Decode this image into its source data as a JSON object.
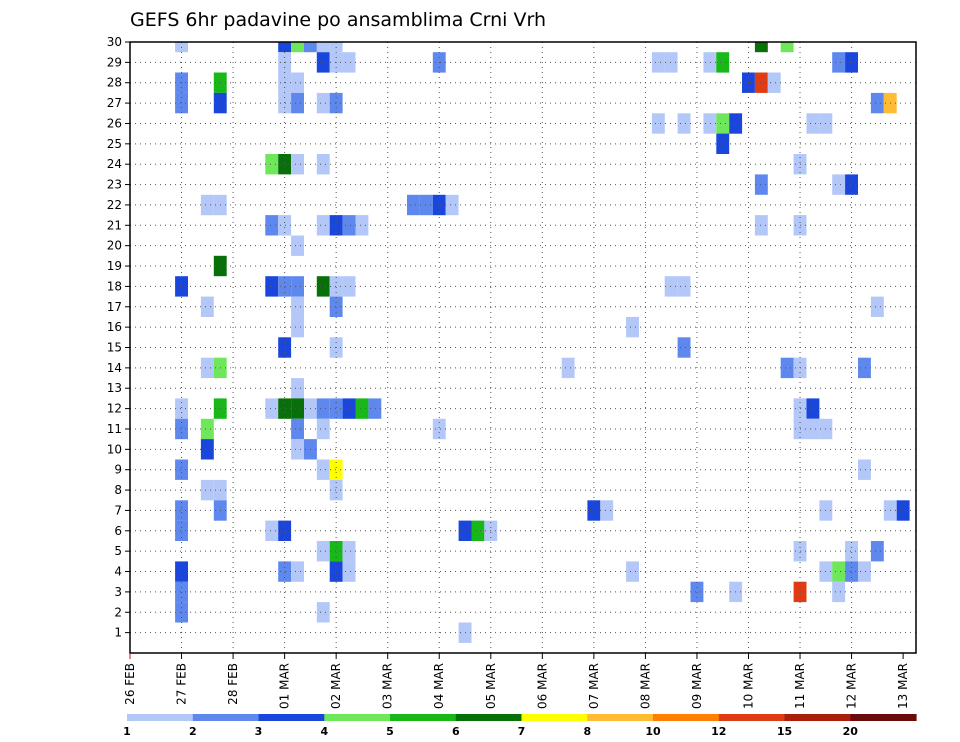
{
  "chart_data": {
    "type": "heatmap",
    "title": "GEFS 6hr padavine po ansamblima Crni Vrh",
    "xlabel": "",
    "ylabel": "",
    "x_ticks": [
      "26 FEB",
      "27 FEB",
      "28 FEB",
      "01 MAR",
      "02 MAR",
      "03 MAR",
      "04 MAR",
      "05 MAR",
      "06 MAR",
      "07 MAR",
      "08 MAR",
      "09 MAR",
      "10 MAR",
      "11 MAR",
      "12 MAR",
      "13 MAR"
    ],
    "y_ticks": [
      "1",
      "2",
      "3",
      "4",
      "5",
      "6",
      "7",
      "8",
      "9",
      "10",
      "11",
      "12",
      "13",
      "14",
      "15",
      "16",
      "17",
      "18",
      "19",
      "20",
      "21",
      "22",
      "23",
      "24",
      "25",
      "26",
      "27",
      "28",
      "29",
      "30"
    ],
    "x_unit": "6-hour step index (0 = 26 FEB 00z, 4 steps per day)",
    "xlim": [
      0,
      61
    ],
    "ylim": [
      0,
      30
    ],
    "grid": true,
    "legend": {
      "placement": "bottom",
      "colors": [
        "#b3c8f8",
        "#5e88ee",
        "#1a46dc",
        "#6ee85a",
        "#18b818",
        "#087008",
        "#ffff00",
        "#ffbb33",
        "#ff7f00",
        "#e03c14",
        "#aa1e0c",
        "#6a0a0a"
      ],
      "labels": [
        "1",
        "2",
        "3",
        "4",
        "5",
        "6",
        "7",
        "8",
        "10",
        "12",
        "15",
        "20"
      ]
    },
    "cells": [
      [
        4,
        30,
        1
      ],
      [
        12,
        30,
        3
      ],
      [
        13,
        30,
        4
      ],
      [
        14,
        30,
        2
      ],
      [
        15,
        30,
        1
      ],
      [
        16,
        30,
        1
      ],
      [
        49,
        30,
        6
      ],
      [
        51,
        30,
        4
      ],
      [
        12,
        29,
        1
      ],
      [
        15,
        29,
        3
      ],
      [
        16,
        29,
        1
      ],
      [
        17,
        29,
        1
      ],
      [
        24,
        29,
        2
      ],
      [
        41,
        29,
        1
      ],
      [
        42,
        29,
        1
      ],
      [
        45,
        29,
        1
      ],
      [
        46,
        29,
        5
      ],
      [
        55,
        29,
        2
      ],
      [
        56,
        29,
        3
      ],
      [
        4,
        28,
        2
      ],
      [
        7,
        28,
        5
      ],
      [
        12,
        28,
        1
      ],
      [
        13,
        28,
        1
      ],
      [
        48,
        28,
        3
      ],
      [
        49,
        28,
        10
      ],
      [
        50,
        28,
        1
      ],
      [
        4,
        27,
        2
      ],
      [
        7,
        27,
        3
      ],
      [
        12,
        27,
        1
      ],
      [
        13,
        27,
        2
      ],
      [
        15,
        27,
        1
      ],
      [
        16,
        27,
        2
      ],
      [
        58,
        27,
        2
      ],
      [
        59,
        27,
        8
      ],
      [
        41,
        26,
        1
      ],
      [
        43,
        26,
        1
      ],
      [
        45,
        26,
        1
      ],
      [
        46,
        26,
        4
      ],
      [
        47,
        26,
        3
      ],
      [
        53,
        26,
        1
      ],
      [
        54,
        26,
        1
      ],
      [
        46,
        25,
        3
      ],
      [
        11,
        24,
        4
      ],
      [
        12,
        24,
        6
      ],
      [
        13,
        24,
        1
      ],
      [
        15,
        24,
        1
      ],
      [
        52,
        24,
        1
      ],
      [
        49,
        23,
        2
      ],
      [
        55,
        23,
        1
      ],
      [
        56,
        23,
        3
      ],
      [
        6,
        22,
        1
      ],
      [
        7,
        22,
        1
      ],
      [
        22,
        22,
        2
      ],
      [
        23,
        22,
        2
      ],
      [
        24,
        22,
        3
      ],
      [
        25,
        22,
        1
      ],
      [
        11,
        21,
        2
      ],
      [
        12,
        21,
        1
      ],
      [
        15,
        21,
        1
      ],
      [
        16,
        21,
        3
      ],
      [
        17,
        21,
        2
      ],
      [
        18,
        21,
        1
      ],
      [
        49,
        21,
        1
      ],
      [
        52,
        21,
        1
      ],
      [
        13,
        20,
        1
      ],
      [
        7,
        19,
        6
      ],
      [
        4,
        18,
        3
      ],
      [
        11,
        18,
        3
      ],
      [
        12,
        18,
        2
      ],
      [
        13,
        18,
        2
      ],
      [
        15,
        18,
        6
      ],
      [
        16,
        18,
        1
      ],
      [
        17,
        18,
        1
      ],
      [
        42,
        18,
        1
      ],
      [
        43,
        18,
        1
      ],
      [
        6,
        17,
        1
      ],
      [
        13,
        17,
        1
      ],
      [
        16,
        17,
        2
      ],
      [
        58,
        17,
        1
      ],
      [
        13,
        16,
        1
      ],
      [
        39,
        16,
        1
      ],
      [
        12,
        15,
        3
      ],
      [
        16,
        15,
        1
      ],
      [
        43,
        15,
        2
      ],
      [
        6,
        14,
        1
      ],
      [
        7,
        14,
        4
      ],
      [
        34,
        14,
        1
      ],
      [
        51,
        14,
        2
      ],
      [
        52,
        14,
        1
      ],
      [
        57,
        14,
        2
      ],
      [
        13,
        13,
        1
      ],
      [
        4,
        12,
        1
      ],
      [
        7,
        12,
        5
      ],
      [
        11,
        12,
        1
      ],
      [
        12,
        12,
        6
      ],
      [
        13,
        12,
        6
      ],
      [
        14,
        12,
        1
      ],
      [
        15,
        12,
        2
      ],
      [
        16,
        12,
        2
      ],
      [
        17,
        12,
        3
      ],
      [
        18,
        12,
        5
      ],
      [
        19,
        12,
        2
      ],
      [
        52,
        12,
        1
      ],
      [
        53,
        12,
        3
      ],
      [
        4,
        11,
        2
      ],
      [
        6,
        11,
        4
      ],
      [
        13,
        11,
        2
      ],
      [
        15,
        11,
        1
      ],
      [
        24,
        11,
        1
      ],
      [
        52,
        11,
        1
      ],
      [
        53,
        11,
        1
      ],
      [
        54,
        11,
        1
      ],
      [
        6,
        10,
        3
      ],
      [
        13,
        10,
        1
      ],
      [
        14,
        10,
        2
      ],
      [
        4,
        9,
        2
      ],
      [
        15,
        9,
        1
      ],
      [
        16,
        9,
        7
      ],
      [
        57,
        9,
        1
      ],
      [
        6,
        8,
        1
      ],
      [
        7,
        8,
        1
      ],
      [
        16,
        8,
        1
      ],
      [
        4,
        7,
        2
      ],
      [
        7,
        7,
        2
      ],
      [
        36,
        7,
        3
      ],
      [
        37,
        7,
        1
      ],
      [
        54,
        7,
        1
      ],
      [
        59,
        7,
        1
      ],
      [
        60,
        7,
        3
      ],
      [
        4,
        6,
        2
      ],
      [
        11,
        6,
        1
      ],
      [
        12,
        6,
        3
      ],
      [
        26,
        6,
        3
      ],
      [
        27,
        6,
        5
      ],
      [
        28,
        6,
        1
      ],
      [
        15,
        5,
        1
      ],
      [
        16,
        5,
        5
      ],
      [
        17,
        5,
        1
      ],
      [
        52,
        5,
        1
      ],
      [
        56,
        5,
        1
      ],
      [
        58,
        5,
        2
      ],
      [
        4,
        4,
        3
      ],
      [
        12,
        4,
        2
      ],
      [
        13,
        4,
        1
      ],
      [
        16,
        4,
        3
      ],
      [
        17,
        4,
        1
      ],
      [
        39,
        4,
        1
      ],
      [
        54,
        4,
        1
      ],
      [
        55,
        4,
        4
      ],
      [
        56,
        4,
        2
      ],
      [
        57,
        4,
        1
      ],
      [
        4,
        3,
        2
      ],
      [
        44,
        3,
        2
      ],
      [
        47,
        3,
        1
      ],
      [
        52,
        3,
        10
      ],
      [
        55,
        3,
        1
      ],
      [
        4,
        2,
        2
      ],
      [
        15,
        2,
        1
      ],
      [
        26,
        1,
        1
      ]
    ]
  }
}
